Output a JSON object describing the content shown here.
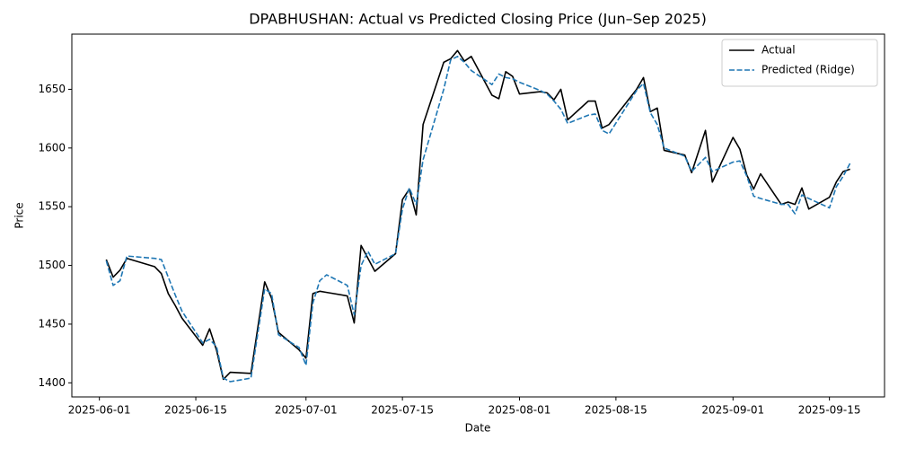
{
  "chart_data": {
    "type": "line",
    "title": "DPABHUSHAN: Actual vs Predicted Closing Price (Jun–Sep 2025)",
    "xlabel": "Date",
    "ylabel": "Price",
    "x": [
      "2025-06-02",
      "2025-06-03",
      "2025-06-04",
      "2025-06-05",
      "2025-06-09",
      "2025-06-10",
      "2025-06-11",
      "2025-06-12",
      "2025-06-13",
      "2025-06-16",
      "2025-06-17",
      "2025-06-18",
      "2025-06-19",
      "2025-06-20",
      "2025-06-23",
      "2025-06-25",
      "2025-06-26",
      "2025-06-27",
      "2025-06-30",
      "2025-07-01",
      "2025-07-02",
      "2025-07-03",
      "2025-07-04",
      "2025-07-07",
      "2025-07-08",
      "2025-07-09",
      "2025-07-10",
      "2025-07-11",
      "2025-07-14",
      "2025-07-15",
      "2025-07-16",
      "2025-07-17",
      "2025-07-18",
      "2025-07-21",
      "2025-07-22",
      "2025-07-23",
      "2025-07-24",
      "2025-07-25",
      "2025-07-28",
      "2025-07-29",
      "2025-07-30",
      "2025-07-31",
      "2025-08-01",
      "2025-08-04",
      "2025-08-05",
      "2025-08-06",
      "2025-08-07",
      "2025-08-08",
      "2025-08-11",
      "2025-08-12",
      "2025-08-13",
      "2025-08-14",
      "2025-08-18",
      "2025-08-19",
      "2025-08-20",
      "2025-08-21",
      "2025-08-22",
      "2025-08-25",
      "2025-08-26",
      "2025-08-28",
      "2025-08-29",
      "2025-09-01",
      "2025-09-02",
      "2025-09-03",
      "2025-09-04",
      "2025-09-05",
      "2025-09-08",
      "2025-09-09",
      "2025-09-10",
      "2025-09-11",
      "2025-09-12",
      "2025-09-15",
      "2025-09-16",
      "2025-09-17",
      "2025-09-18"
    ],
    "series": [
      {
        "name": "Actual",
        "color": "#000000",
        "linestyle": "solid",
        "values": [
          1505,
          1490,
          1496,
          1506,
          1499,
          1493,
          1476,
          1466,
          1455,
          1432,
          1446,
          1428,
          1403,
          1409,
          1408,
          1486,
          1472,
          1443,
          1428,
          1421,
          1476,
          1478,
          1477,
          1474,
          1451,
          1517,
          1506,
          1495,
          1510,
          1556,
          1565,
          1543,
          1620,
          1673,
          1676,
          1683,
          1674,
          1678,
          1645,
          1642,
          1665,
          1661,
          1646,
          1648,
          1647,
          1641,
          1650,
          1624,
          1640,
          1640,
          1617,
          1620,
          1650,
          1660,
          1631,
          1634,
          1598,
          1594,
          1579,
          1615,
          1571,
          1609,
          1599,
          1577,
          1565,
          1578,
          1552,
          1554,
          1552,
          1566,
          1548,
          1558,
          1571,
          1580,
          1582
        ]
      },
      {
        "name": "Predicted (Ridge)",
        "color": "#1f77b4",
        "linestyle": "dashed",
        "values": [
          1504,
          1483,
          1487,
          1508,
          1506,
          1505,
          1490,
          1475,
          1461,
          1434,
          1437,
          1431,
          1404,
          1401,
          1404,
          1480,
          1476,
          1441,
          1430,
          1415,
          1468,
          1487,
          1492,
          1483,
          1458,
          1500,
          1512,
          1501,
          1510,
          1548,
          1566,
          1552,
          1590,
          1650,
          1675,
          1678,
          1673,
          1666,
          1654,
          1663,
          1660,
          1659,
          1656,
          1649,
          1646,
          1640,
          1633,
          1621,
          1628,
          1629,
          1615,
          1612,
          1649,
          1655,
          1630,
          1620,
          1600,
          1593,
          1580,
          1592,
          1580,
          1588,
          1589,
          1576,
          1559,
          1557,
          1552,
          1552,
          1544,
          1560,
          1557,
          1549,
          1567,
          1576,
          1587
        ]
      }
    ],
    "xlim": [
      "2025-05-28",
      "2025-09-23"
    ],
    "xticks": [
      "2025-06-01",
      "2025-06-15",
      "2025-07-01",
      "2025-07-15",
      "2025-08-01",
      "2025-08-15",
      "2025-09-01",
      "2025-09-15"
    ],
    "ylim": [
      1388,
      1697
    ],
    "yticks": [
      1400,
      1450,
      1500,
      1550,
      1600,
      1650
    ],
    "grid": false,
    "legend": "upper right"
  }
}
